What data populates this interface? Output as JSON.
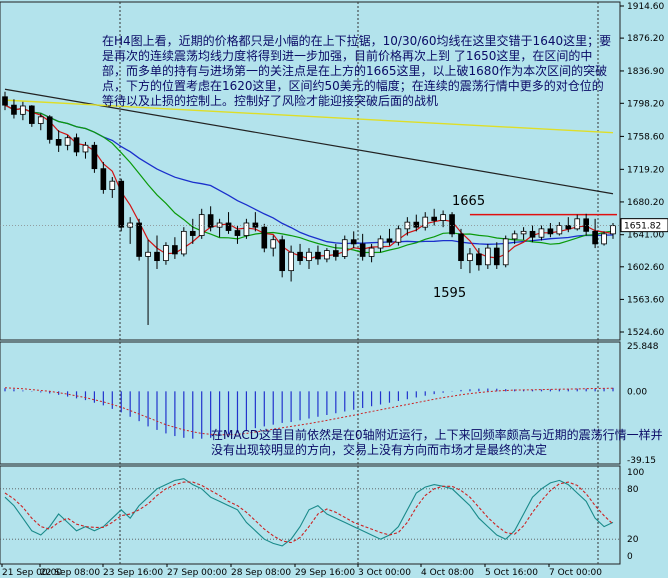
{
  "chart_data": {
    "type": "candlestick",
    "timeframe": "H4",
    "colors": {
      "background": "#b3e3ec",
      "candle_up": "#ffffff",
      "candle_down": "#000000",
      "ma_10": "#d21414",
      "ma_30": "#0a9a0a",
      "ma_60": "#1a2fcc",
      "ma_slow_dark": "#222222",
      "ma_slow_yellow": "#dede28",
      "resistance_line": "#e01010",
      "macd_hist": "#2233cc",
      "macd_signal": "#cc2222",
      "stoch_k": "#1a8a8a",
      "stoch_d": "#cc2222"
    },
    "price_panel": {
      "y_ticks": [
        "1914.60",
        "1876.20",
        "1836.90",
        "1798.20",
        "1758.60",
        "1719.20",
        "1680.20",
        "1641.00",
        "1602.60",
        "1563.60",
        "1524.60"
      ],
      "ylim": [
        1524.6,
        1914.6
      ],
      "current_price": "1651.82",
      "candles": [
        {
          "o": 1806,
          "h": 1812,
          "l": 1790,
          "c": 1796
        },
        {
          "o": 1796,
          "h": 1803,
          "l": 1780,
          "c": 1785
        },
        {
          "o": 1785,
          "h": 1800,
          "l": 1778,
          "c": 1795
        },
        {
          "o": 1795,
          "h": 1796,
          "l": 1770,
          "c": 1774
        },
        {
          "o": 1774,
          "h": 1786,
          "l": 1766,
          "c": 1782
        },
        {
          "o": 1782,
          "h": 1784,
          "l": 1750,
          "c": 1755
        },
        {
          "o": 1755,
          "h": 1766,
          "l": 1740,
          "c": 1748
        },
        {
          "o": 1748,
          "h": 1760,
          "l": 1742,
          "c": 1757
        },
        {
          "o": 1757,
          "h": 1762,
          "l": 1735,
          "c": 1740
        },
        {
          "o": 1740,
          "h": 1752,
          "l": 1732,
          "c": 1748
        },
        {
          "o": 1748,
          "h": 1752,
          "l": 1715,
          "c": 1720
        },
        {
          "o": 1720,
          "h": 1728,
          "l": 1690,
          "c": 1695
        },
        {
          "o": 1695,
          "h": 1710,
          "l": 1685,
          "c": 1705
        },
        {
          "o": 1705,
          "h": 1708,
          "l": 1645,
          "c": 1650
        },
        {
          "o": 1650,
          "h": 1662,
          "l": 1630,
          "c": 1655
        },
        {
          "o": 1655,
          "h": 1660,
          "l": 1610,
          "c": 1615
        },
        {
          "o": 1615,
          "h": 1635,
          "l": 1533,
          "c": 1620
        },
        {
          "o": 1620,
          "h": 1640,
          "l": 1600,
          "c": 1610
        },
        {
          "o": 1610,
          "h": 1632,
          "l": 1605,
          "c": 1628
        },
        {
          "o": 1628,
          "h": 1638,
          "l": 1612,
          "c": 1618
        },
        {
          "o": 1618,
          "h": 1650,
          "l": 1615,
          "c": 1645
        },
        {
          "o": 1645,
          "h": 1660,
          "l": 1630,
          "c": 1640
        },
        {
          "o": 1640,
          "h": 1672,
          "l": 1636,
          "c": 1665
        },
        {
          "o": 1665,
          "h": 1675,
          "l": 1645,
          "c": 1650
        },
        {
          "o": 1650,
          "h": 1660,
          "l": 1638,
          "c": 1655
        },
        {
          "o": 1655,
          "h": 1668,
          "l": 1642,
          "c": 1646
        },
        {
          "o": 1646,
          "h": 1652,
          "l": 1630,
          "c": 1640
        },
        {
          "o": 1640,
          "h": 1660,
          "l": 1636,
          "c": 1655
        },
        {
          "o": 1655,
          "h": 1668,
          "l": 1645,
          "c": 1650
        },
        {
          "o": 1650,
          "h": 1654,
          "l": 1620,
          "c": 1625
        },
        {
          "o": 1625,
          "h": 1640,
          "l": 1615,
          "c": 1635
        },
        {
          "o": 1635,
          "h": 1640,
          "l": 1590,
          "c": 1598
        },
        {
          "o": 1598,
          "h": 1628,
          "l": 1585,
          "c": 1620
        },
        {
          "o": 1620,
          "h": 1630,
          "l": 1605,
          "c": 1610
        },
        {
          "o": 1610,
          "h": 1625,
          "l": 1600,
          "c": 1620
        },
        {
          "o": 1620,
          "h": 1628,
          "l": 1605,
          "c": 1612
        },
        {
          "o": 1612,
          "h": 1625,
          "l": 1608,
          "c": 1622
        },
        {
          "o": 1622,
          "h": 1630,
          "l": 1610,
          "c": 1615
        },
        {
          "o": 1615,
          "h": 1640,
          "l": 1612,
          "c": 1635
        },
        {
          "o": 1635,
          "h": 1645,
          "l": 1625,
          "c": 1630
        },
        {
          "o": 1630,
          "h": 1642,
          "l": 1610,
          "c": 1615
        },
        {
          "o": 1615,
          "h": 1630,
          "l": 1608,
          "c": 1625
        },
        {
          "o": 1625,
          "h": 1640,
          "l": 1620,
          "c": 1636
        },
        {
          "o": 1636,
          "h": 1648,
          "l": 1628,
          "c": 1632
        },
        {
          "o": 1632,
          "h": 1652,
          "l": 1628,
          "c": 1648
        },
        {
          "o": 1648,
          "h": 1662,
          "l": 1640,
          "c": 1656
        },
        {
          "o": 1656,
          "h": 1665,
          "l": 1645,
          "c": 1650
        },
        {
          "o": 1650,
          "h": 1668,
          "l": 1646,
          "c": 1662
        },
        {
          "o": 1662,
          "h": 1672,
          "l": 1652,
          "c": 1658
        },
        {
          "o": 1658,
          "h": 1670,
          "l": 1650,
          "c": 1665
        },
        {
          "o": 1665,
          "h": 1668,
          "l": 1638,
          "c": 1642
        },
        {
          "o": 1642,
          "h": 1648,
          "l": 1600,
          "c": 1610
        },
        {
          "o": 1610,
          "h": 1625,
          "l": 1595,
          "c": 1618
        },
        {
          "o": 1618,
          "h": 1625,
          "l": 1598,
          "c": 1605
        },
        {
          "o": 1605,
          "h": 1630,
          "l": 1600,
          "c": 1625
        },
        {
          "o": 1625,
          "h": 1632,
          "l": 1600,
          "c": 1605
        },
        {
          "o": 1605,
          "h": 1640,
          "l": 1602,
          "c": 1636
        },
        {
          "o": 1636,
          "h": 1646,
          "l": 1630,
          "c": 1642
        },
        {
          "o": 1642,
          "h": 1650,
          "l": 1635,
          "c": 1645
        },
        {
          "o": 1645,
          "h": 1652,
          "l": 1632,
          "c": 1638
        },
        {
          "o": 1638,
          "h": 1652,
          "l": 1634,
          "c": 1648
        },
        {
          "o": 1648,
          "h": 1655,
          "l": 1638,
          "c": 1642
        },
        {
          "o": 1642,
          "h": 1656,
          "l": 1640,
          "c": 1652
        },
        {
          "o": 1652,
          "h": 1662,
          "l": 1644,
          "c": 1648
        },
        {
          "o": 1648,
          "h": 1665,
          "l": 1646,
          "c": 1660
        },
        {
          "o": 1660,
          "h": 1666,
          "l": 1640,
          "c": 1645
        },
        {
          "o": 1645,
          "h": 1660,
          "l": 1625,
          "c": 1630
        },
        {
          "o": 1630,
          "h": 1645,
          "l": 1628,
          "c": 1642
        },
        {
          "o": 1642,
          "h": 1655,
          "l": 1636,
          "c": 1651.82
        }
      ],
      "ma_slow_dark": {
        "start": 1815,
        "end": 1690
      },
      "ma_slow_yellow": {
        "start": 1802,
        "end": 1763
      },
      "resistance": {
        "value": 1665,
        "from_index": 52,
        "to_index": 68
      },
      "annotations": {
        "high_label": "1665",
        "low_label": "1595",
        "main_text": "在H4图上看，近期的价格都只是小幅的在上下拉锯，10/30/60均线在这里交错于1640这里；要是再次的连续震荡均线力度将得到进一步加强，目前价格再次上到 了1650这里，在区间的中部，而多单的持有与进场第一的关注点是在上方的1665这里，以上破1680作为本次区间的突破点，下方的位置考虑在1620这里，区间约50美元的幅度；在连续的震荡行情中更多的对仓位的等待以及止损的控制上。控制好了风险才能迎接突破后面的战机"
      }
    },
    "macd_panel": {
      "y_ticks": [
        "25.848",
        "0.00",
        "-39.15"
      ],
      "ylim": [
        -39.15,
        25.848
      ],
      "histogram": [
        1.8,
        1.2,
        0.5,
        -0.2,
        -0.6,
        -1.2,
        -2,
        -3,
        -4,
        -5,
        -6.5,
        -8,
        -10,
        -12,
        -14.5,
        -17,
        -20,
        -22,
        -24,
        -25.5,
        -26.5,
        -27,
        -27,
        -26.5,
        -25.5,
        -24.5,
        -23.5,
        -22.5,
        -21,
        -20,
        -19,
        -18,
        -17.5,
        -16.5,
        -15.5,
        -14.5,
        -13.5,
        -12.5,
        -11.5,
        -10.5,
        -9.5,
        -8.5,
        -7.5,
        -6.5,
        -5.5,
        -4.5,
        -3.5,
        -2.5,
        -1.6,
        -0.8,
        0.2,
        0.8,
        1.2,
        1.5,
        1.6,
        1.5,
        1.3,
        1.1,
        0.9,
        0.9,
        1,
        1.1,
        1.2,
        1.4,
        1.5,
        1.5,
        1.6,
        1.8,
        2
      ],
      "signal": [
        2,
        1.8,
        1.5,
        1,
        0.5,
        0,
        -0.8,
        -1.6,
        -2.6,
        -3.6,
        -4.8,
        -6,
        -7.5,
        -9,
        -11,
        -13,
        -15,
        -17,
        -19,
        -20.5,
        -22,
        -23,
        -24,
        -24.5,
        -24.8,
        -24.8,
        -24.5,
        -24,
        -23.2,
        -22.4,
        -21.6,
        -20.8,
        -20,
        -19.2,
        -18.4,
        -17.5,
        -16.6,
        -15.6,
        -14.6,
        -13.6,
        -12.5,
        -11.5,
        -10.5,
        -9.5,
        -8.5,
        -7.5,
        -6.5,
        -5.5,
        -4.5,
        -3.6,
        -2.8,
        -2,
        -1.3,
        -0.7,
        -0.2,
        0.2,
        0.5,
        0.7,
        0.8,
        0.9,
        1,
        1.1,
        1.2,
        1.3,
        1.4,
        1.5,
        1.6,
        1.7,
        1.8
      ],
      "annotation": "在MACD这里目前依然是在0轴附近运行，上下来回频率颇高与近期的震荡行情一样并没有出现较明显的方向，交易上没有方向而市场才是最终的决定"
    },
    "stoch_panel": {
      "y_ticks": [
        "100",
        "80",
        "20",
        "0"
      ],
      "ylim": [
        0,
        100
      ],
      "k": [
        70,
        60,
        45,
        30,
        25,
        35,
        50,
        40,
        30,
        35,
        30,
        35,
        45,
        55,
        45,
        60,
        70,
        80,
        85,
        90,
        92,
        85,
        80,
        70,
        65,
        60,
        55,
        40,
        30,
        20,
        15,
        12,
        20,
        35,
        55,
        60,
        50,
        45,
        40,
        35,
        30,
        25,
        20,
        25,
        35,
        55,
        75,
        82,
        85,
        83,
        80,
        70,
        60,
        45,
        35,
        25,
        20,
        30,
        50,
        70,
        80,
        87,
        90,
        85,
        75,
        65,
        45,
        35,
        40
      ],
      "d": [
        75,
        68,
        58,
        45,
        35,
        32,
        40,
        45,
        38,
        35,
        34,
        34,
        40,
        48,
        50,
        55,
        62,
        72,
        80,
        85,
        88,
        88,
        84,
        78,
        72,
        65,
        60,
        52,
        42,
        32,
        24,
        18,
        16,
        22,
        35,
        50,
        56,
        52,
        46,
        40,
        36,
        32,
        28,
        25,
        28,
        40,
        58,
        72,
        80,
        83,
        83,
        78,
        70,
        58,
        46,
        36,
        28,
        26,
        36,
        52,
        66,
        78,
        86,
        88,
        84,
        74,
        60,
        48,
        38
      ]
    },
    "x_ticks": [
      "21 Sep 2020",
      "22 Sep 2020",
      "23 Sep 2020",
      "27 Sep 2020",
      "28 Sep 2020",
      "29 Sep 2020",
      "3 Oct 2020",
      "4 Oct 2020",
      "5 Oct 2020",
      "7 Oct 2020"
    ],
    "x_tick_labels": [
      "21 Sep 00:00",
      "22 Sep 08:00",
      "23 Sep 16:00",
      "27 Sep 00:00",
      "28 Sep 08:00",
      "29 Sep 16:00",
      "3 Oct 00:00",
      "4 Oct 08:00",
      "5 Oct 16:00",
      "7 Oct 00:00"
    ]
  }
}
